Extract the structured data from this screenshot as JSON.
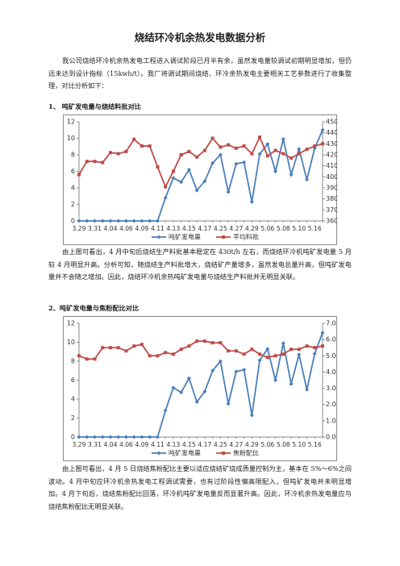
{
  "title": "烧结环冷机余热发电数据分析",
  "paragraphs": [
    "我公司烧结环冷机余热发电工程进入调试阶段已月半有余，虽然发电量较调试初期明显增加，但仍远未达到设计指标（15kwh/t）。我厂将调试期间烧结、环冷余热发电主要相关工艺参数进行了收集整理，对比分析如下：",
    "由上图可看出，4 月中旬后烧结生产料批基本稳定在 430t/h 左右，而烧结环冷机吨矿发电量 5 月较 4 月明显升高。分析可知，随烧结生产料批增大，烧结矿产量增多，虽然发电总量升高，但吨矿发电量并不会随之增加。因此，烧结环冷机余热吨矿发电量与烧结生产料批并无明显关联。",
    "由上图可看出，4 月 5 日烧结焦粉配比主要以适应烧结矿烧成质量控制为主，基本在 5%～6%之间波动。4 月中旬应环冷机余热发电工程调试需要，也有过阶段性偏高限配入，但吨矿发电并未明显增加。4 月下旬后，烧结焦粉配比回落，环冷机吨矿发电量反而显著升高。因此，环冷机余热发电量应与烧结焦粉配比无明显关联。"
  ],
  "headings": [
    "1、 吨矿发电量与烧结料批对比",
    "2、吨矿发电量与焦粉配比对比"
  ],
  "chart_data": [
    {
      "type": "line",
      "categories": [
        "3.29",
        null,
        "3.31",
        null,
        "4.04",
        null,
        "4.06",
        null,
        "4.09",
        null,
        "4.11",
        null,
        "4.13",
        null,
        "4.15",
        null,
        "4.17",
        null,
        "4.25",
        null,
        "4.27",
        null,
        "4.29",
        null,
        "5.06",
        null,
        "5.08",
        null,
        "5.10",
        null,
        "5.16",
        null
      ],
      "ylim": [
        0,
        12
      ],
      "yticks": [
        0,
        2,
        4,
        6,
        8,
        10,
        12
      ],
      "y2lim": [
        360,
        450
      ],
      "y2ticks": [
        360,
        370,
        380,
        390,
        400,
        410,
        420,
        430,
        440,
        450
      ],
      "legend": "bottom",
      "series": [
        {
          "name": "吨矿发电量",
          "color": "#4a7ebb",
          "values": [
            0,
            0,
            0,
            0,
            0,
            0,
            0,
            0,
            0,
            0,
            0,
            2.8,
            5.2,
            4.7,
            6.2,
            3.7,
            4.8,
            7.0,
            8.0,
            3.5,
            6.9,
            7.1,
            2.3,
            8.1,
            9.3,
            6.0,
            9.9,
            5.6,
            8.7,
            5.0,
            8.8,
            11.0
          ]
        },
        {
          "name": "平均料批",
          "color": "#be4b48",
          "axis": "y2",
          "values": [
            402,
            414,
            414,
            413,
            422,
            421,
            423,
            434,
            428,
            428,
            409,
            391,
            405,
            420,
            423,
            418,
            424,
            435,
            427,
            429,
            426,
            428,
            421,
            436,
            419,
            424,
            421,
            417,
            421,
            425,
            428,
            430
          ]
        }
      ]
    },
    {
      "type": "line",
      "categories": [
        "3.29",
        null,
        "3.31",
        null,
        "4.04",
        null,
        "4.06",
        null,
        "4.09",
        null,
        "4.11",
        null,
        "4.13",
        null,
        "4.15",
        null,
        "4.17",
        null,
        "4.25",
        null,
        "4.27",
        null,
        "4.29",
        null,
        "5.06",
        null,
        "5.08",
        null,
        "5.10",
        null,
        "5.16",
        null
      ],
      "ylim": [
        0,
        12
      ],
      "yticks": [
        0,
        2,
        4,
        6,
        8,
        10,
        12
      ],
      "y2lim": [
        0,
        7
      ],
      "y2ticks": [
        {
          "value": 0,
          "label": "0.0"
        },
        {
          "value": 1,
          "label": "1.0"
        },
        {
          "value": 2,
          "label": "2.0"
        },
        {
          "value": 3,
          "label": "3.0"
        },
        {
          "value": 4,
          "label": "4.0"
        },
        {
          "value": 5,
          "label": "5.0"
        },
        {
          "value": 6,
          "label": "6.0"
        },
        {
          "value": 7,
          "label": "7.0"
        }
      ],
      "legend": "bottom",
      "series": [
        {
          "name": "吨矿发电量",
          "color": "#4a7ebb",
          "values": [
            0,
            0,
            0,
            0,
            0,
            0,
            0,
            0,
            0,
            0,
            0,
            2.8,
            5.2,
            4.7,
            6.2,
            3.7,
            4.8,
            7.0,
            8.0,
            3.5,
            6.9,
            7.1,
            2.3,
            8.1,
            9.3,
            6.0,
            9.9,
            5.6,
            8.7,
            5.0,
            8.8,
            11.0
          ]
        },
        {
          "name": "焦粉配比",
          "color": "#be4b48",
          "axis": "y2",
          "values": [
            5.0,
            4.8,
            4.8,
            5.5,
            5.5,
            5.5,
            5.3,
            5.6,
            5.7,
            5.0,
            5.0,
            5.2,
            5.1,
            5.4,
            5.6,
            5.9,
            5.9,
            5.8,
            5.8,
            5.3,
            5.3,
            5.1,
            5.4,
            5.1,
            4.9,
            5.0,
            5.1,
            5.4,
            5.4,
            5.6,
            5.5,
            5.6
          ]
        }
      ]
    }
  ]
}
